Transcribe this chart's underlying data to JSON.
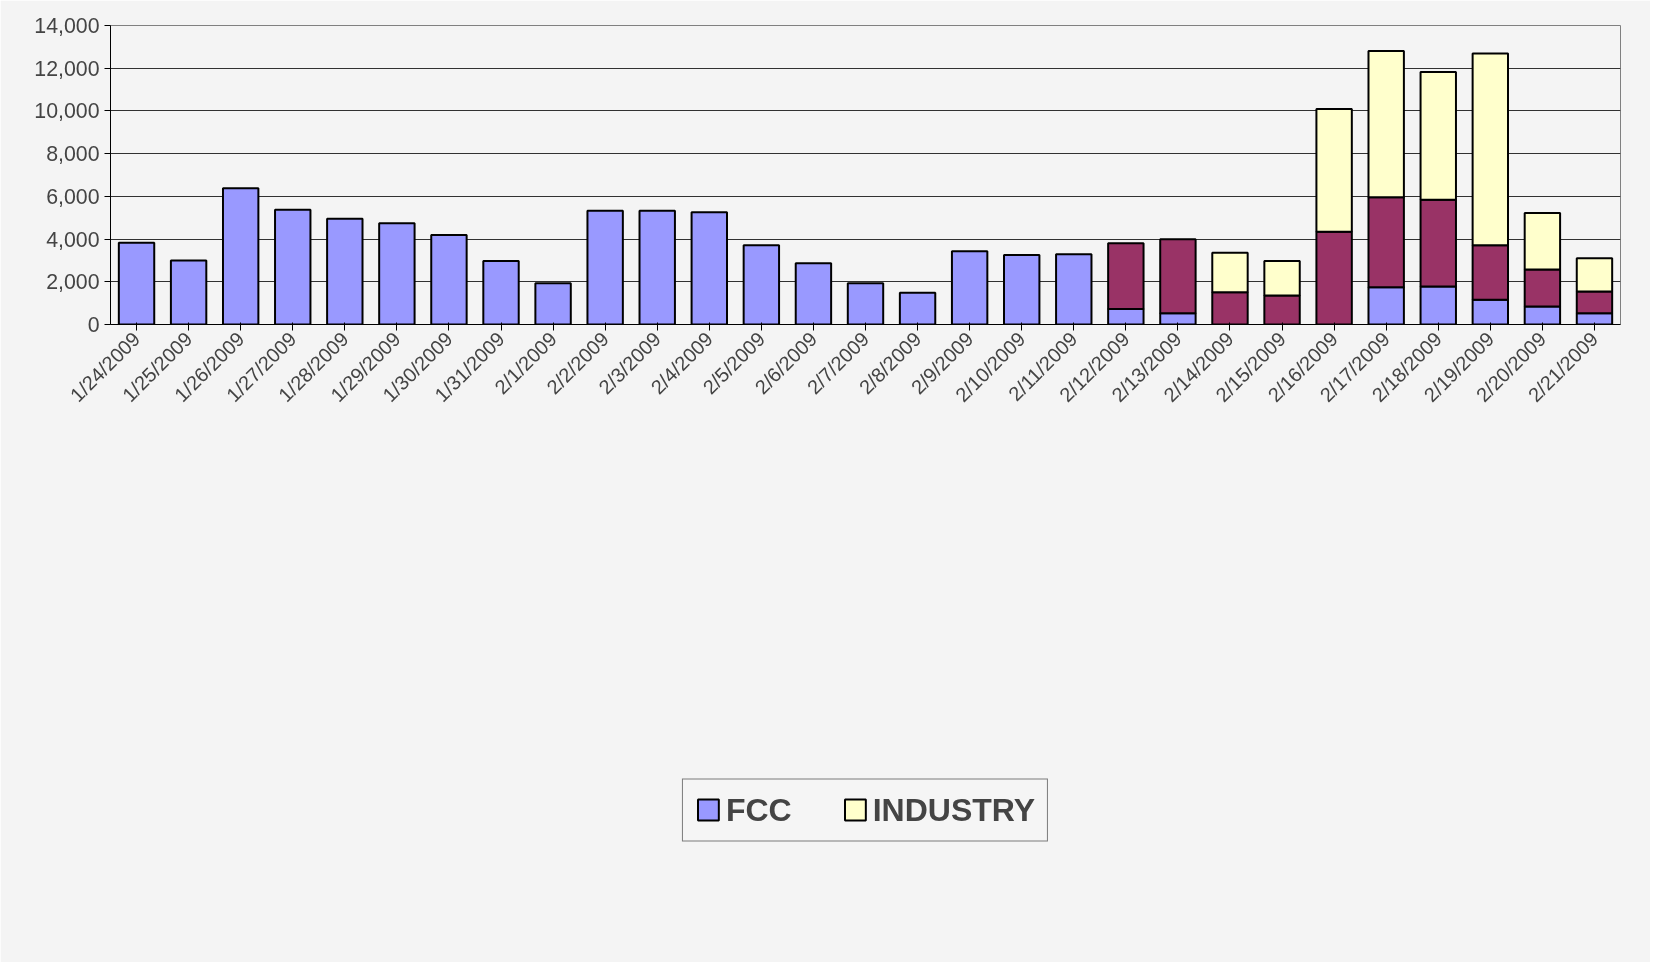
{
  "chart_data": {
    "type": "bar",
    "stacked": true,
    "categories": [
      "1/24/2009",
      "1/25/2009",
      "1/26/2009",
      "1/27/2009",
      "1/28/2009",
      "1/29/2009",
      "1/30/2009",
      "1/31/2009",
      "2/1/2009",
      "2/2/2009",
      "2/3/2009",
      "2/4/2009",
      "2/5/2009",
      "2/6/2009",
      "2/7/2009",
      "2/8/2009",
      "2/9/2009",
      "2/10/2009",
      "2/11/2009",
      "2/12/2009",
      "2/13/2009",
      "2/14/2009",
      "2/15/2009",
      "2/16/2009",
      "2/17/2009",
      "2/18/2009",
      "2/19/2009",
      "2/20/2009",
      "2/21/2009"
    ],
    "series": [
      {
        "name": "FCC",
        "color": "#9999ff",
        "values": [
          3830,
          3000,
          6380,
          5370,
          4950,
          4740,
          4190,
          2970,
          1930,
          5330,
          5330,
          5260,
          3710,
          2870,
          1930,
          1490,
          3430,
          3250,
          3290,
          730,
          530,
          null,
          null,
          null,
          1750,
          1780,
          1160,
          840,
          530
        ]
      },
      {
        "color": "#993366",
        "values": [
          null,
          null,
          null,
          null,
          null,
          null,
          null,
          null,
          null,
          null,
          null,
          null,
          null,
          null,
          null,
          null,
          null,
          null,
          null,
          3080,
          3460,
          1510,
          1360,
          4340,
          4210,
          4060,
          2550,
          1740,
          1020
        ]
      },
      {
        "name": "INDUSTRY",
        "color": "#ffffcc",
        "values": [
          null,
          null,
          null,
          null,
          null,
          null,
          null,
          null,
          null,
          null,
          null,
          null,
          null,
          null,
          null,
          null,
          null,
          null,
          null,
          null,
          null,
          1850,
          1610,
          5750,
          6850,
          5980,
          8980,
          2640,
          1550
        ]
      }
    ],
    "ylim": [
      0,
      14000
    ],
    "yticks": [
      {
        "value": 0,
        "label": "0"
      },
      {
        "value": 2000,
        "label": "2,000"
      },
      {
        "value": 4000,
        "label": "4,000"
      },
      {
        "value": 6000,
        "label": "6,000"
      },
      {
        "value": 8000,
        "label": "8,000"
      },
      {
        "value": 10000,
        "label": "10,000"
      },
      {
        "value": 12000,
        "label": "12,000"
      },
      {
        "value": 14000,
        "label": "14,000"
      }
    ],
    "grid": "y",
    "legend": "bottom"
  }
}
